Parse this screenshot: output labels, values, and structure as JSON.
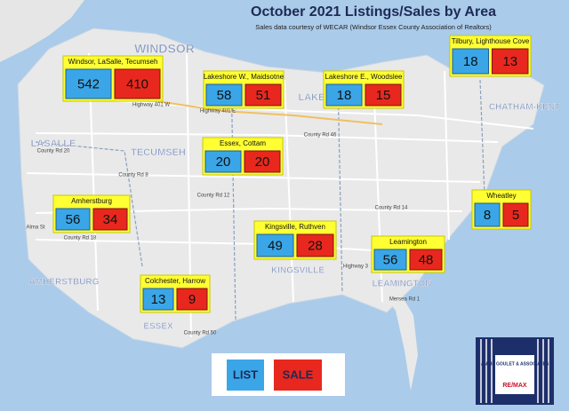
{
  "header": {
    "title": "October 2021 Listings/Sales by Area",
    "subtitle": "Sales data courtesy of WECAR (Windsor Essex County Association of Realtors)"
  },
  "areas": [
    {
      "name": "Windsor, LaSalle, Tecumseh",
      "list": 542,
      "sale": 410
    },
    {
      "name": "Lakeshore W., Maidsotne",
      "list": 58,
      "sale": 51
    },
    {
      "name": "Lakeshore E., Woodslee",
      "list": 18,
      "sale": 15
    },
    {
      "name": "Tilbury, Lighthouse Cove",
      "list": 18,
      "sale": 13
    },
    {
      "name": "Essex, Cottam",
      "list": 20,
      "sale": 20
    },
    {
      "name": "Amherstburg",
      "list": 56,
      "sale": 34
    },
    {
      "name": "Wheatley",
      "list": 8,
      "sale": 5
    },
    {
      "name": "Kingsville, Ruthven",
      "list": 49,
      "sale": 28
    },
    {
      "name": "Leamington",
      "list": 56,
      "sale": 48
    },
    {
      "name": "Colchester, Harrow",
      "list": 13,
      "sale": 9
    }
  ],
  "legend": {
    "list": "LIST",
    "sale": "SALE"
  },
  "places": [
    "WINDSOR",
    "LASALLE",
    "TECUMSEH",
    "LAKESHORE",
    "CHATHAM-KENT",
    "AMHERSTBURG",
    "KINGSVILLE",
    "ESSEX",
    "LEAMINGTON"
  ],
  "roads": [
    "Highway 401 W",
    "Highway 401 E",
    "County Rd 46",
    "County Rd 8",
    "County Rd 12",
    "County Rd 14",
    "County Rd 18",
    "County Rd 20",
    "County Rd 50",
    "Highway 3",
    "Mersea Rd 1",
    "Alma St"
  ],
  "logo": {
    "name": "ANGIE GOULET & ASSOCIATES",
    "brand": "RE/MAX"
  }
}
